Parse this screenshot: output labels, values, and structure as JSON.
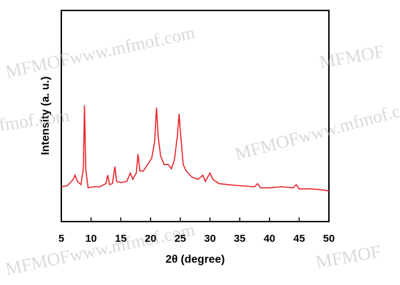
{
  "chart_data": {
    "type": "line",
    "xlabel": "2θ (degree)",
    "ylabel": "Intensity (a. u.)",
    "xlim": [
      5,
      50
    ],
    "xticks": [
      5,
      10,
      15,
      20,
      25,
      30,
      35,
      40,
      45,
      50
    ],
    "ylim": [
      0,
      100
    ],
    "series": [
      {
        "color": "#e8242b",
        "x": [
          5,
          6,
          7,
          7.3,
          7.7,
          8.3,
          8.7,
          8.9,
          9.1,
          9.5,
          10.5,
          11.5,
          12.5,
          12.8,
          13.1,
          13.6,
          14,
          14.3,
          15,
          16,
          16.6,
          17,
          17.6,
          17.9,
          18.2,
          18.8,
          19.5,
          20.2,
          20.7,
          21,
          21.3,
          21.7,
          22.3,
          23,
          23.5,
          24,
          24.5,
          24.8,
          25.1,
          25.5,
          26,
          27,
          28,
          28.8,
          29.2,
          30,
          30.5,
          31.5,
          33,
          35,
          37.5,
          38,
          38.5,
          40,
          42,
          44,
          44.5,
          45,
          47,
          49,
          50
        ],
        "values": [
          16.5,
          17,
          20,
          22,
          19,
          17.5,
          25,
          55,
          25,
          16,
          16.5,
          16.5,
          18,
          22,
          17.5,
          18,
          26,
          19,
          18.5,
          19,
          23,
          20,
          23,
          32,
          24,
          24,
          27,
          30,
          38,
          54,
          40,
          31,
          27,
          27,
          25,
          29,
          40,
          51,
          40,
          27,
          24,
          21,
          20,
          22,
          19,
          23,
          20,
          18,
          17.5,
          17,
          16.5,
          18,
          16,
          16,
          16.5,
          16,
          17.5,
          15.5,
          15.5,
          15,
          14.5
        ]
      }
    ]
  },
  "watermarks": [
    "MFMOFwww.mfmof.com",
    "MFMOF",
    "fmof.com",
    "MFMOFwww.mfmof.c",
    "MFMOFwww.mfmof.com",
    "MFMOF"
  ]
}
